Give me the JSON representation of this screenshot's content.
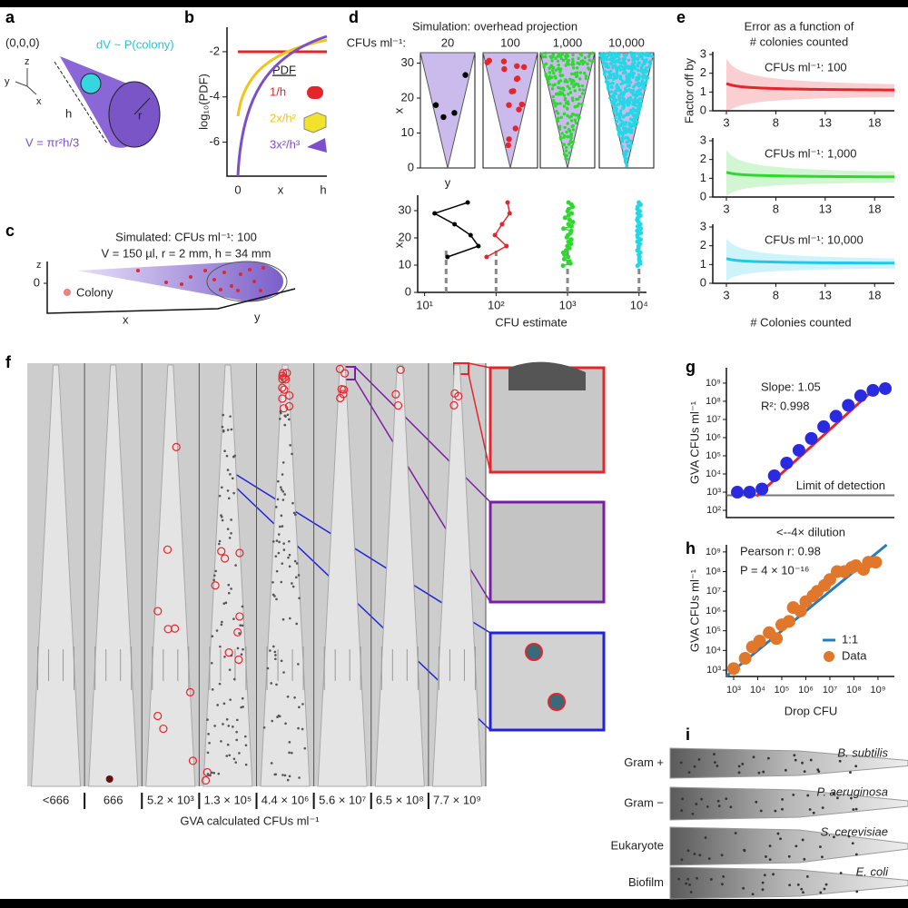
{
  "panels": {
    "a": {
      "letter": "a",
      "origin": "(0,0,0)",
      "dv": "dV ~ P(colony)",
      "axis_z": "z",
      "axis_y": "y",
      "axis_x": "x",
      "h": "h",
      "r": "r",
      "volume": "V = πr²h/3"
    },
    "b": {
      "letter": "b",
      "ylabel": "log₁₀(PDF)",
      "yticks": [
        -2,
        -4,
        -6
      ],
      "ylim": [
        -7.5,
        -1.2
      ],
      "xlabels": [
        "0",
        "x",
        "h"
      ],
      "legend_title": "PDF",
      "curves": [
        {
          "label": "1/h",
          "color": "#e3262c"
        },
        {
          "label": "2x/h²",
          "color": "#f2c318"
        },
        {
          "label": "3x²/h³",
          "color": "#7b4fc9"
        }
      ]
    },
    "c": {
      "letter": "c",
      "title": "Simulated: CFUs ml⁻¹: 100",
      "subtitle": "V = 150 µl, r = 2 mm, h = 34 mm",
      "axis_z": "z",
      "ztick": 0,
      "axis_x": "x",
      "axis_y": "y",
      "legend": "Colony"
    },
    "d": {
      "letter": "d",
      "title": "Simulation: overhead projection",
      "columns_label": "CFUs ml⁻¹:",
      "columns": [
        {
          "label": "20",
          "value": 20,
          "color": "#000000"
        },
        {
          "label": "100",
          "value": 100,
          "color": "#e3262c"
        },
        {
          "label": "1,000",
          "value": 1000,
          "color": "#2ed82e"
        },
        {
          "label": "10,000",
          "value": 10000,
          "color": "#22d8e6"
        }
      ],
      "top_ylabel": "x",
      "top_xlabel": "y",
      "top_yticks": [
        0,
        10,
        20,
        30
      ],
      "top_ylim": [
        0,
        33
      ],
      "bottom_ylabel": "x",
      "bottom_yticks": [
        0,
        10,
        20,
        30
      ],
      "bottom_ylim": [
        0,
        35
      ],
      "bottom_xlim": [
        8,
        12000
      ],
      "bottom_xticks": [
        {
          "value": 10,
          "label": "10¹"
        },
        {
          "value": 100,
          "label": "10²"
        },
        {
          "value": 1000,
          "label": "10³"
        },
        {
          "value": 10000,
          "label": "10⁴"
        }
      ],
      "bottom_xlabel": "CFU estimate"
    },
    "e": {
      "letter": "e",
      "title_lines": [
        "Error as a function of",
        "# colonies counted"
      ],
      "ylabel": "Factor off by",
      "xlabel": "# Colonies counted",
      "yticks": [
        0,
        1,
        2,
        3
      ],
      "ylim": [
        0,
        3
      ],
      "xticks": [
        3,
        8,
        13,
        18
      ],
      "xlim": [
        3,
        20
      ],
      "subplots": [
        {
          "label": "CFUs ml⁻¹: 100",
          "color": "#e3262c"
        },
        {
          "label": "CFUs ml⁻¹: 1,000",
          "color": "#2ed82e"
        },
        {
          "label": "CFUs ml⁻¹: 10,000",
          "color": "#22c8e6"
        }
      ]
    },
    "f": {
      "letter": "f",
      "labels": [
        "<666",
        "666",
        "5.2 × 10³",
        "1.3 × 10⁵",
        "4.4 × 10⁶",
        "5.6 × 10⁷",
        "6.5 × 10⁸",
        "7.7 × 10⁹"
      ],
      "xlabel": "GVA calculated CFUs ml⁻¹"
    },
    "i": {
      "letter": "i",
      "rows": [
        {
          "label": "Gram +",
          "species": "B. subtilis"
        },
        {
          "label": "Gram −",
          "species": "P. aeruginosa"
        },
        {
          "label": "Eukaryote",
          "species": "S. cerevisiae"
        },
        {
          "label": "Biofilm",
          "species": "E. coli"
        }
      ]
    }
  },
  "chart_data": [
    {
      "type": "scatter",
      "panel": "g",
      "ylabel": "GVA CFUs ml⁻¹",
      "xlabel": "<--4× dilution",
      "log_y": true,
      "categories": [
        null,
        null,
        null,
        null,
        null,
        null,
        null,
        null,
        null,
        null,
        null,
        null,
        null
      ],
      "series": [
        {
          "color": "#2a2ae0",
          "values": [
            1000,
            1000,
            1500,
            8000,
            40000,
            200000,
            900000,
            4000000,
            15000000,
            60000000,
            200000000,
            400000000,
            500000000
          ]
        }
      ],
      "fit_color": "#e3262c",
      "annotations": [
        "Slope: 1.05",
        "R²: 0.998"
      ],
      "limit": {
        "label": "Limit of detection",
        "value": 666
      },
      "ylim": [
        40,
        7000000000
      ],
      "yticks": [
        {
          "value": 100,
          "label": "10²"
        },
        {
          "value": 1000,
          "label": "10³"
        },
        {
          "value": 10000,
          "label": "10⁴"
        },
        {
          "value": 100000,
          "label": "10⁵"
        },
        {
          "value": 1000000,
          "label": "10⁶"
        },
        {
          "value": 10000000,
          "label": "10⁷"
        },
        {
          "value": 100000000,
          "label": "10⁸"
        },
        {
          "value": 1000000000,
          "label": "10⁹"
        }
      ]
    },
    {
      "type": "scatter",
      "panel": "h",
      "ylabel": "GVA CFUs ml⁻¹",
      "xlabel": "Drop CFU",
      "log_x": true,
      "log_y": true,
      "annotations": [
        "Pearson r: 0.98",
        "P = 4 × 10⁻¹⁶"
      ],
      "reference_line": {
        "name": "1:1",
        "color": "#2b7bba"
      },
      "series": [
        {
          "name": "Data",
          "color": "#e0772a",
          "x": [
            1000.0,
            3000.0,
            6000.0,
            12000.0,
            30000.0,
            60000.0,
            100000.0,
            200000.0,
            300000.0,
            600000.0,
            1000000.0,
            2000000.0,
            3000000.0,
            6000000.0,
            10000000.0,
            20000000.0,
            40000000.0,
            80000000.0,
            120000000.0,
            250000000.0,
            400000000.0,
            800000000.0
          ],
          "values": [
            1200.0,
            4000.0,
            15000.0,
            30000.0,
            80000.0,
            40000.0,
            200000.0,
            300000.0,
            1500000.0,
            1000000.0,
            3000000.0,
            6000000.0,
            10000000.0,
            20000000.0,
            40000000.0,
            100000000.0,
            100000000.0,
            160000000.0,
            200000000.0,
            130000000.0,
            300000000.0,
            300000000.0
          ]
        }
      ],
      "xlim": [
        500,
        4800000000
      ],
      "ylim": [
        480,
        2300000000
      ],
      "xticks": [
        {
          "value": 1000,
          "label": "10³"
        },
        {
          "value": 10000,
          "label": "10⁴"
        },
        {
          "value": 100000,
          "label": "10⁵"
        },
        {
          "value": 1000000,
          "label": "10⁶"
        },
        {
          "value": 10000000,
          "label": "10⁷"
        },
        {
          "value": 100000000,
          "label": "10⁸"
        },
        {
          "value": 1000000000,
          "label": "10⁹"
        }
      ],
      "yticks": [
        {
          "value": 1000,
          "label": "10³"
        },
        {
          "value": 10000,
          "label": "10⁴"
        },
        {
          "value": 100000,
          "label": "10⁵"
        },
        {
          "value": 1000000,
          "label": "10⁶"
        },
        {
          "value": 10000000,
          "label": "10⁷"
        },
        {
          "value": 100000000,
          "label": "10⁸"
        },
        {
          "value": 1000000000,
          "label": "10⁹"
        }
      ]
    }
  ]
}
